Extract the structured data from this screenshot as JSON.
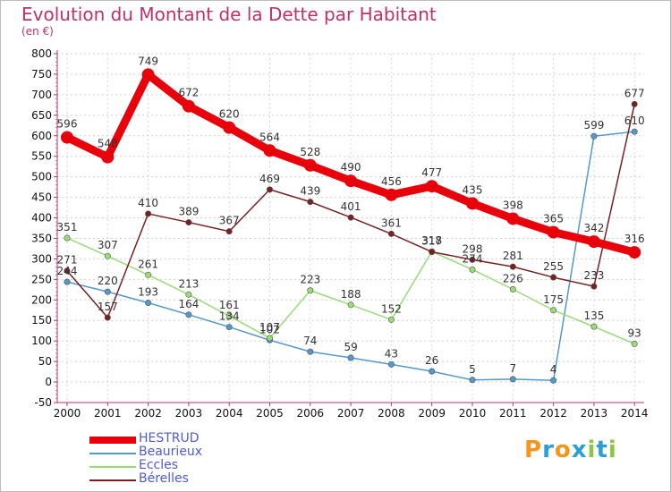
{
  "title": "Evolution du Montant de la Dette par Habitant",
  "subtitle": "(en €)",
  "logo": {
    "text": "Proxiti",
    "colors": [
      "#f7941d",
      "#2b9fd8",
      "#f7941d",
      "#2b9fd8",
      "#8dc63f",
      "#2b9fd8",
      "#8dc63f"
    ]
  },
  "chart_data": {
    "type": "line",
    "x": [
      "2000",
      "2001",
      "2002",
      "2003",
      "2004",
      "2005",
      "2006",
      "2007",
      "2008",
      "2009",
      "2010",
      "2011",
      "2012",
      "2013",
      "2014"
    ],
    "ylim": [
      -50,
      800
    ],
    "yticks": [
      -50,
      0,
      50,
      100,
      150,
      200,
      250,
      300,
      350,
      400,
      450,
      500,
      550,
      600,
      650,
      700,
      750,
      800
    ],
    "grid": "horizontal dashed",
    "legend_position": "bottom-left",
    "series": [
      {
        "name": "HESTRUD",
        "color": "#e8000b",
        "values": [
          596,
          548,
          749,
          672,
          620,
          564,
          528,
          490,
          456,
          477,
          435,
          398,
          365,
          342,
          316
        ]
      },
      {
        "name": "Beaurieux",
        "color": "#5599cc",
        "values": [
          244,
          220,
          193,
          164,
          134,
          102,
          74,
          59,
          43,
          26,
          5,
          7,
          4,
          599,
          610
        ]
      },
      {
        "name": "Eccles",
        "color": "#99dd77",
        "values": [
          351,
          307,
          261,
          213,
          161,
          107,
          223,
          188,
          152,
          318,
          274,
          226,
          175,
          135,
          93
        ]
      },
      {
        "name": "Bérelles",
        "color": "#772222",
        "values": [
          271,
          157,
          410,
          389,
          367,
          469,
          439,
          401,
          361,
          317,
          298,
          281,
          255,
          233,
          677
        ]
      }
    ]
  }
}
